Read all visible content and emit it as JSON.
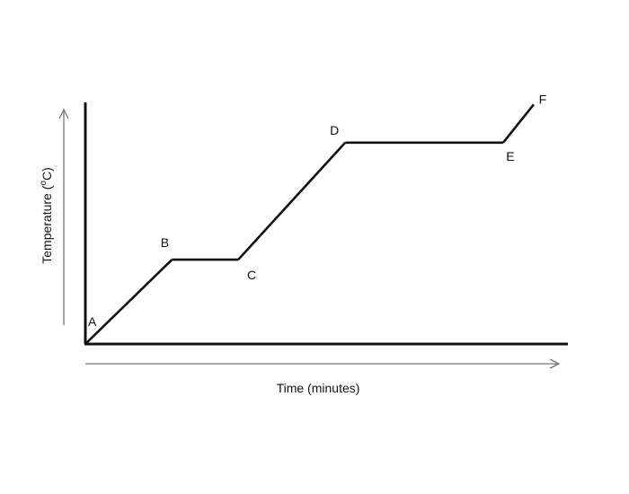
{
  "chart_data": {
    "type": "line",
    "xlabel": "Time (minutes)",
    "ylabel": "Temperature (",
    "ylabel_sup": "o",
    "ylabel_suffix": "C)",
    "ticks": "none",
    "grid": false,
    "xlim": [
      0,
      100
    ],
    "ylim": [
      0,
      100
    ],
    "series": [
      {
        "points": [
          {
            "label": "A",
            "x": 0,
            "y": 0
          },
          {
            "label": "B",
            "x": 17,
            "y": 31
          },
          {
            "label": "C",
            "x": 30,
            "y": 31
          },
          {
            "label": "D",
            "x": 51,
            "y": 74
          },
          {
            "label": "E",
            "x": 82,
            "y": 74
          },
          {
            "label": "F",
            "x": 88,
            "y": 88
          }
        ]
      }
    ]
  }
}
